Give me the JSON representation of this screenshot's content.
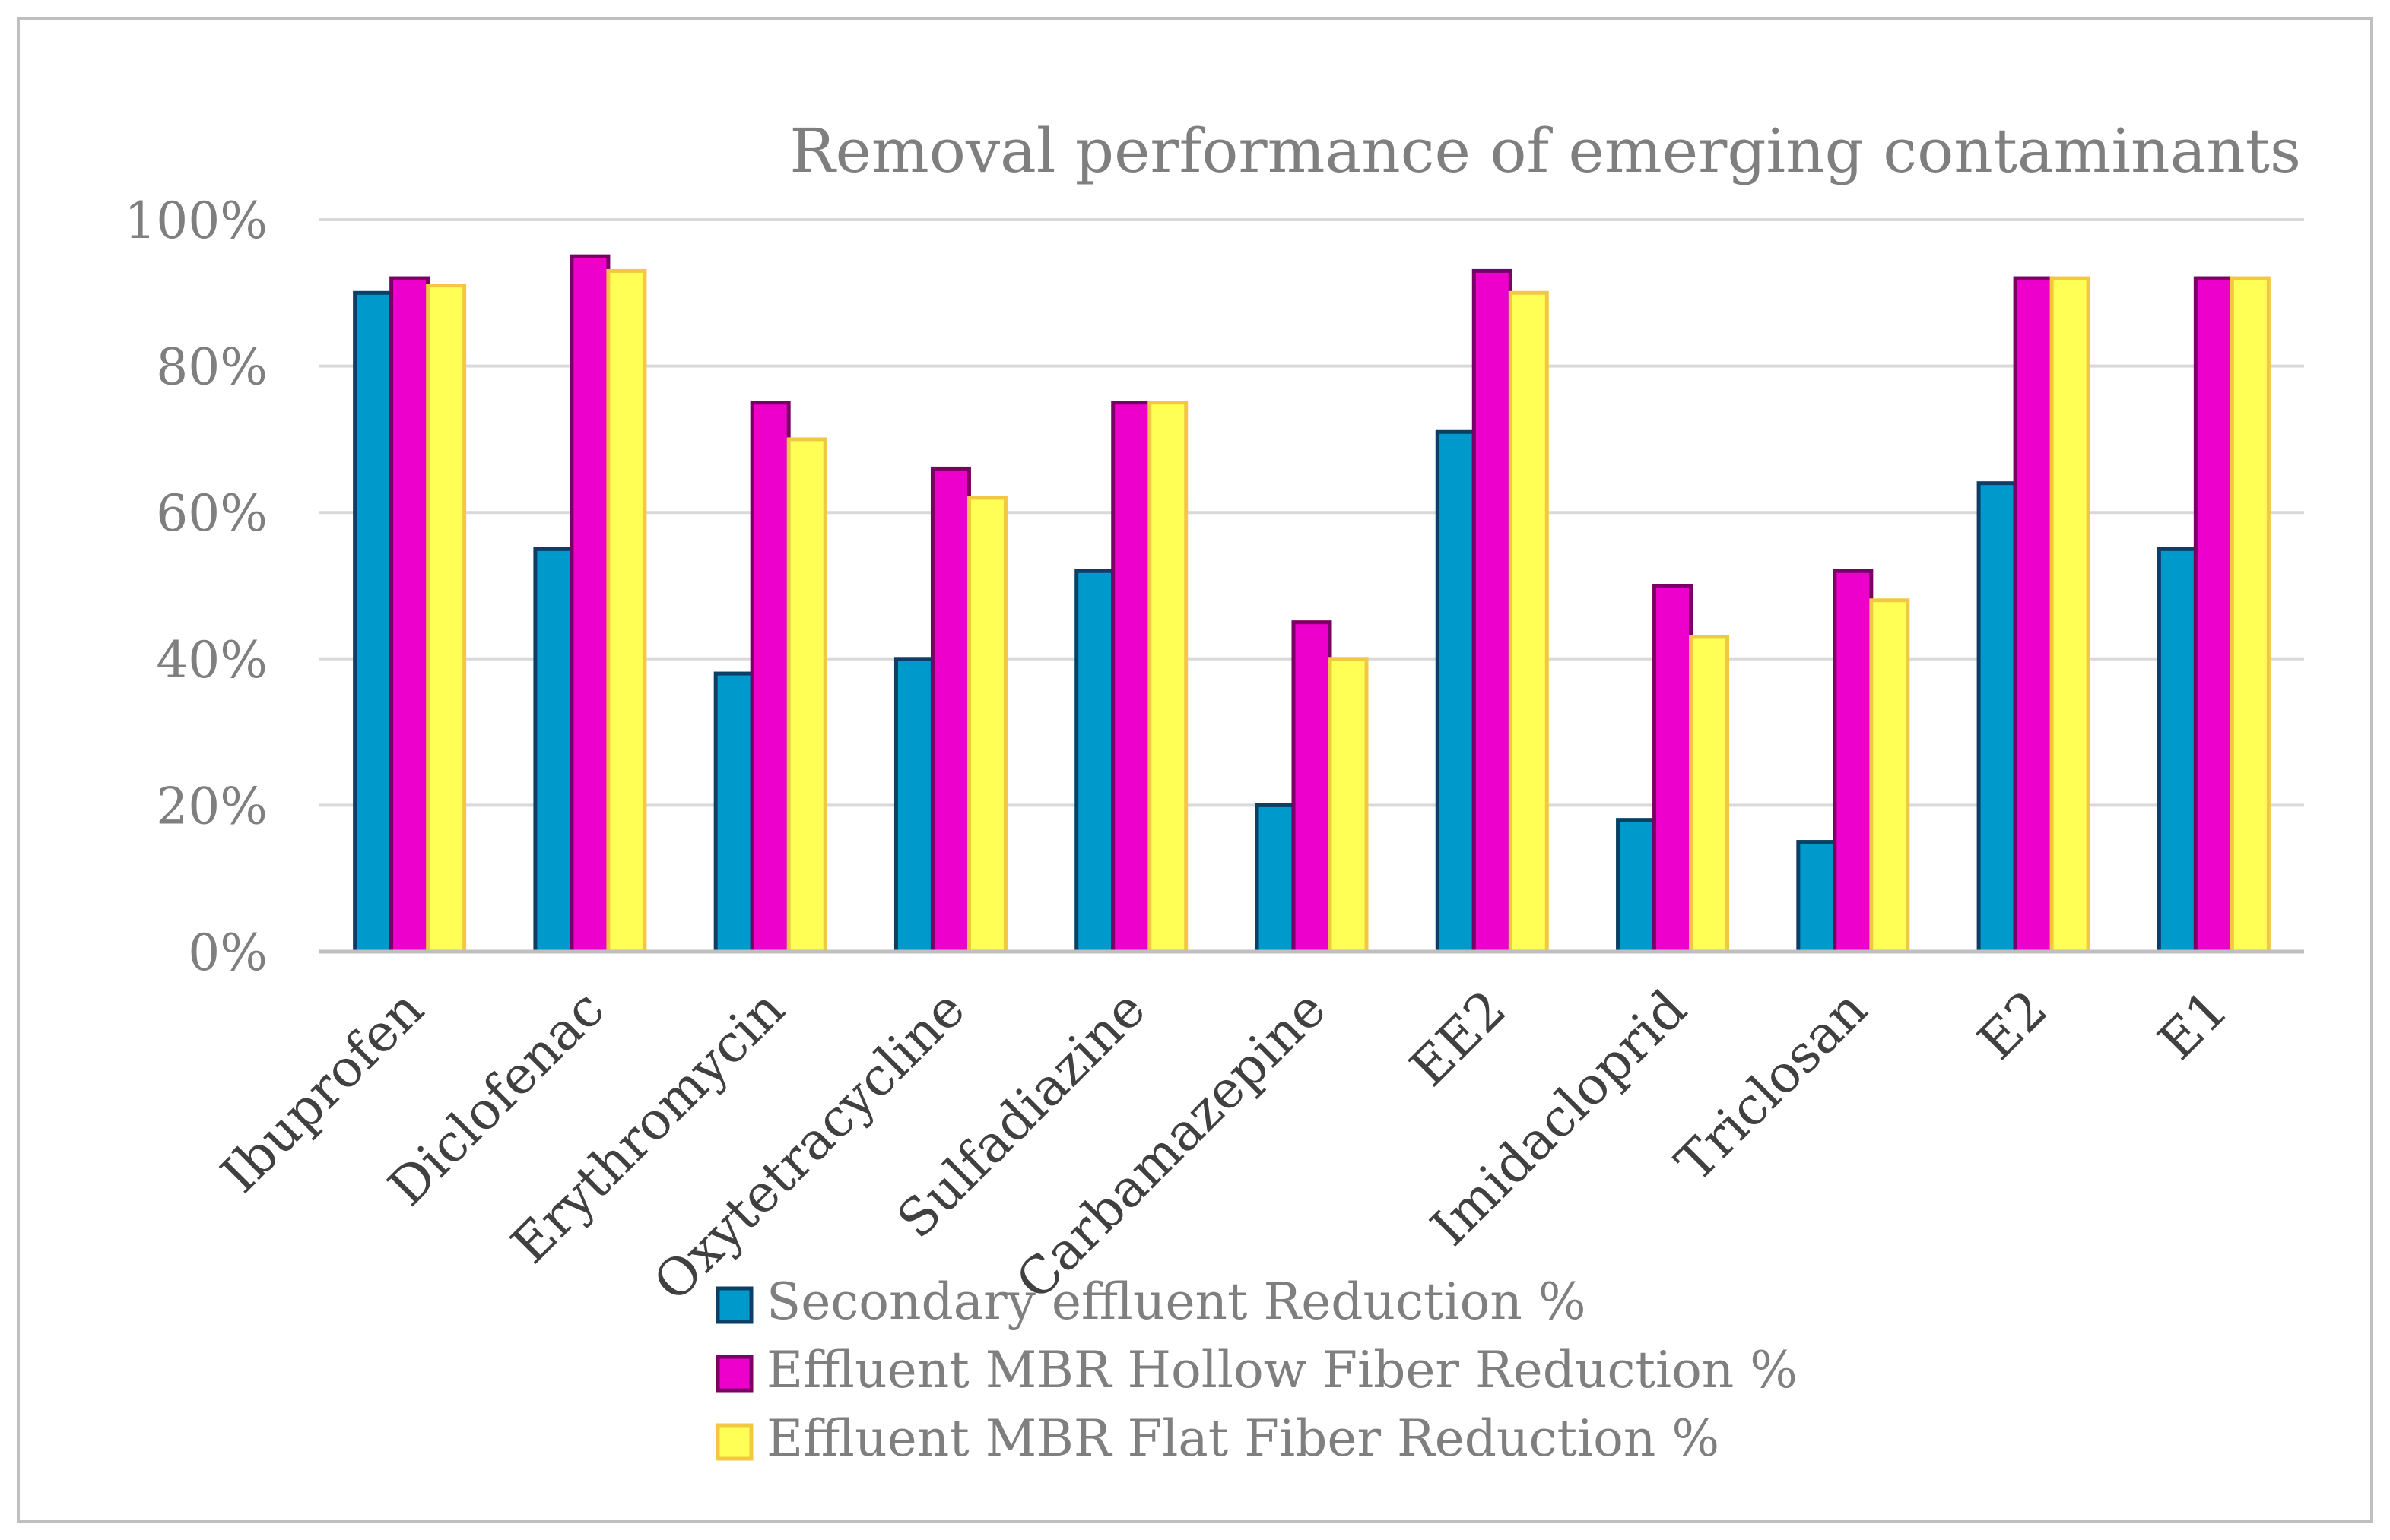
{
  "chart_data": {
    "type": "bar",
    "title": "Removal performance of emerging contaminants",
    "xlabel": "",
    "ylabel": "",
    "ylim": [
      0,
      100
    ],
    "y_ticks": [
      0,
      20,
      40,
      60,
      80,
      100
    ],
    "y_tick_labels": [
      "0%",
      "20%",
      "40%",
      "60%",
      "80%",
      "100%"
    ],
    "grid": true,
    "legend_position": "bottom",
    "categories": [
      "Ibuprofen",
      "Diclofenac",
      "Erythromycin",
      "Oxytetracycline",
      "Sulfadiazine",
      "Carbamazepine",
      "EE2",
      "Imidacloprid",
      "Triclosan",
      "E2",
      "E1"
    ],
    "series": [
      {
        "name": "Secondary effluent Reduction %",
        "fill": "#0099cc",
        "stroke": "#0b3f66",
        "values": [
          90,
          55,
          38,
          40,
          52,
          20,
          71,
          18,
          15,
          64,
          55
        ]
      },
      {
        "name": "Effluent MBR Hollow Fiber Reduction %",
        "fill": "#ee00cc",
        "stroke": "#7a0066",
        "values": [
          92,
          95,
          75,
          66,
          75,
          45,
          93,
          50,
          52,
          92,
          92
        ]
      },
      {
        "name": "Effluent MBR Flat Fiber Reduction %",
        "fill": "#ffff55",
        "stroke": "#f2c842",
        "values": [
          91,
          93,
          70,
          62,
          75,
          40,
          90,
          43,
          48,
          92,
          92
        ]
      }
    ]
  },
  "colors": {
    "text": "#7f7f7f",
    "category_text": "#404040",
    "grid": "#d9d9d9",
    "axis": "#bfbfbf",
    "border": "#bfbfbf"
  }
}
